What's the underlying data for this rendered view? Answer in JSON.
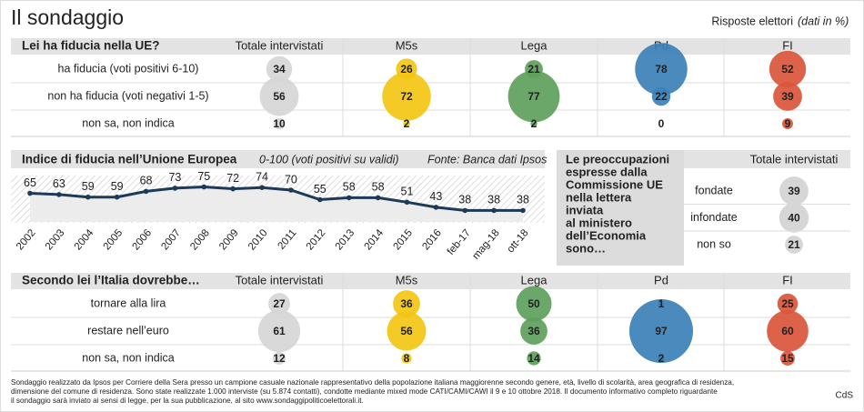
{
  "header": {
    "title": "Il sondaggio",
    "note": "Risposte elettori",
    "note_unit": "(dati in %)"
  },
  "trust_table": {
    "question": "Lei ha fiducia nella UE?",
    "columns": [
      "Totale intervistati",
      "M5s",
      "Lega",
      "Pd",
      "FI"
    ],
    "colors": [
      "#d6d6d6",
      "#f2c514",
      "#5e9f5b",
      "#3b80b6",
      "#d9553b"
    ],
    "rows": [
      {
        "label": "ha fiducia (voti positivi 6-10)",
        "values": [
          34,
          26,
          21,
          78,
          52
        ]
      },
      {
        "label": "non ha fiducia (voti negativi 1-5)",
        "values": [
          56,
          72,
          77,
          22,
          39
        ]
      },
      {
        "label": "non sa, non indica",
        "values": [
          10,
          2,
          2,
          0,
          9
        ]
      }
    ]
  },
  "chart_data": {
    "type": "line",
    "title": "Indice di fiducia nell’Unione Europea",
    "subtitle": "0-100 (voti positivi su validi)",
    "source": "Fonte: Banca dati Ipsos",
    "categories": [
      "2002",
      "2003",
      "2004",
      "2005",
      "2006",
      "2007",
      "2008",
      "2009",
      "2010",
      "2011",
      "2012",
      "2013",
      "2014",
      "2015",
      "2016",
      "feb-17",
      "mag-18",
      "ott-18"
    ],
    "values": [
      65,
      63,
      59,
      59,
      68,
      73,
      75,
      72,
      74,
      70,
      55,
      58,
      58,
      51,
      43,
      38,
      38,
      38
    ],
    "color": "#1d3a58"
  },
  "concern_table": {
    "question": [
      "Le preoccupazioni",
      "espresse dalla",
      "Commissione UE",
      "nella lettera",
      "inviata",
      "al ministero",
      "dell’Economia",
      "sono…"
    ],
    "column": "Totale intervistati",
    "color": "#d6d6d6",
    "rows": [
      {
        "label": "fondate",
        "value": 39
      },
      {
        "label": "infondate",
        "value": 40
      },
      {
        "label": "non so",
        "value": 21
      }
    ]
  },
  "future_table": {
    "question": "Secondo lei l’Italia dovrebbe…",
    "columns": [
      "Totale intervistati",
      "M5s",
      "Lega",
      "Pd",
      "FI"
    ],
    "colors": [
      "#d6d6d6",
      "#f2c514",
      "#5e9f5b",
      "#3b80b6",
      "#d9553b"
    ],
    "rows": [
      {
        "label": "tornare alla lira",
        "values": [
          27,
          36,
          50,
          1,
          25
        ]
      },
      {
        "label": "restare nell’euro",
        "values": [
          61,
          56,
          36,
          97,
          60
        ]
      },
      {
        "label": "non sa, non indica",
        "values": [
          12,
          8,
          14,
          2,
          15
        ]
      }
    ]
  },
  "footer": {
    "lines": [
      "Sondaggio realizzato da Ipsos per Corriere della Sera presso un campione casuale nazionale rappresentativo della popolazione italiana maggiorenne secondo genere, età, livello di scolarità, area geografica di residenza,",
      "dimensione del comune di residenza. Sono state realizzate 1.000 interviste (su 5.874 contatti), condotte mediante mixed mode CATI/CAMI/CAWI  il 9 e 10 ottobre 2018. Il documento informativo completo riguardante",
      "il sondaggio sarà inviato ai sensi di legge, per la sua pubblicazione, al sito www.sondaggipoliticoelettorali.it."
    ],
    "credit": "CdS"
  }
}
